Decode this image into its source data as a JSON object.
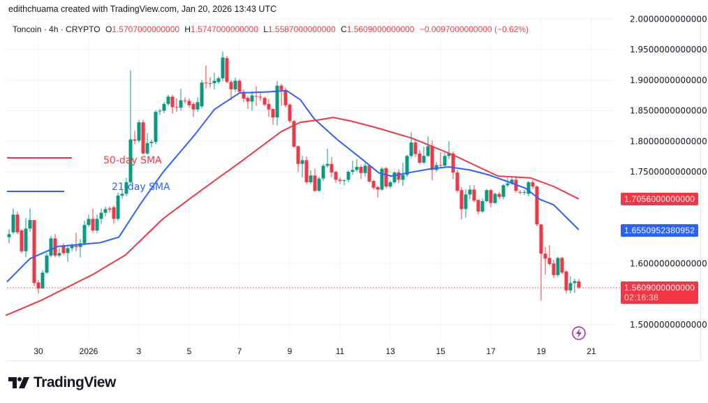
{
  "header": {
    "credit": "edithchuama created with TradingView.com, Jan 20, 2026 13:43 UTC"
  },
  "legend": {
    "symbol": "Toncoin · 4h · CRYPTO",
    "o_label": "O",
    "o": "1.5707000000000",
    "h_label": "H",
    "h": "1.5747000000000",
    "l_label": "L",
    "l": "1.5587000000000",
    "c_label": "C",
    "c": "1.5609000000000",
    "change": "−0.0097000000000 (−0.62%)"
  },
  "annotations": {
    "sma50_label": "50-day SMA",
    "sma21_label": "21-day SMA"
  },
  "price_tags": {
    "sma50": "1.7056000000000",
    "sma21": "1.6550952380952",
    "last": "1.5609000000000",
    "countdown": "02:16:38"
  },
  "colors": {
    "up": "#089981",
    "down": "#f23645",
    "sma21": "#2962ff",
    "sma50": "#f23645",
    "grid": "#f0f1f3",
    "event": "#9c27b0"
  },
  "icons": {
    "event": "lightning-icon",
    "logo": "tradingview-logo"
  },
  "brand": {
    "name": "TradingView"
  },
  "chart_data": {
    "type": "candlestick",
    "interval": "4h",
    "ylim": [
      1.49,
      2.0
    ],
    "grid": true,
    "y_ticks": [
      {
        "value": 2.0,
        "label": "2.0000000000000"
      },
      {
        "value": 1.95,
        "label": "1.9500000000000"
      },
      {
        "value": 1.9,
        "label": "1.9000000000000"
      },
      {
        "value": 1.85,
        "label": "1.8500000000000"
      },
      {
        "value": 1.8,
        "label": "1.8000000000000"
      },
      {
        "value": 1.75,
        "label": "1.7500000000000"
      },
      {
        "value": 1.6,
        "label": "1.6000000000000"
      },
      {
        "value": 1.5,
        "label": "1.5000000000000"
      }
    ],
    "x_ticks": [
      {
        "bar": 7,
        "label": "30"
      },
      {
        "bar": 19,
        "label": "2026"
      },
      {
        "bar": 31,
        "label": "3"
      },
      {
        "bar": 43,
        "label": "5"
      },
      {
        "bar": 55,
        "label": "7"
      },
      {
        "bar": 67,
        "label": "9"
      },
      {
        "bar": 79,
        "label": "11"
      },
      {
        "bar": 91,
        "label": "13"
      },
      {
        "bar": 103,
        "label": "15"
      },
      {
        "bar": 115,
        "label": "17"
      },
      {
        "bar": 127,
        "label": "19"
      },
      {
        "bar": 139,
        "label": "21"
      }
    ],
    "ohlc": [
      [
        1.643,
        1.656,
        1.633,
        1.648
      ],
      [
        1.651,
        1.69,
        1.648,
        1.68
      ],
      [
        1.68,
        1.685,
        1.648,
        1.651
      ],
      [
        1.654,
        1.656,
        1.617,
        1.62
      ],
      [
        1.62,
        1.674,
        1.61,
        1.657
      ],
      [
        1.657,
        1.69,
        1.652,
        1.671
      ],
      [
        1.671,
        1.671,
        1.563,
        1.568
      ],
      [
        1.569,
        1.573,
        1.551,
        1.559
      ],
      [
        1.559,
        1.589,
        1.559,
        1.585
      ],
      [
        1.585,
        1.617,
        1.583,
        1.613
      ],
      [
        1.613,
        1.645,
        1.61,
        1.641
      ],
      [
        1.641,
        1.648,
        1.61,
        1.613
      ],
      [
        1.613,
        1.625,
        1.61,
        1.617
      ],
      [
        1.629,
        1.633,
        1.614,
        1.617
      ],
      [
        1.617,
        1.629,
        1.603,
        1.625
      ],
      [
        1.625,
        1.633,
        1.62,
        1.629
      ],
      [
        1.629,
        1.65,
        1.62,
        1.627
      ],
      [
        1.627,
        1.64,
        1.61,
        1.633
      ],
      [
        1.633,
        1.67,
        1.63,
        1.663
      ],
      [
        1.663,
        1.68,
        1.66,
        1.673
      ],
      [
        1.673,
        1.69,
        1.65,
        1.654
      ],
      [
        1.654,
        1.68,
        1.65,
        1.673
      ],
      [
        1.673,
        1.69,
        1.665,
        1.683
      ],
      [
        1.683,
        1.693,
        1.677,
        1.689
      ],
      [
        1.69,
        1.693,
        1.683,
        1.688
      ],
      [
        1.692,
        1.695,
        1.665,
        1.673
      ],
      [
        1.673,
        1.716,
        1.67,
        1.711
      ],
      [
        1.711,
        1.72,
        1.706,
        1.714
      ],
      [
        1.714,
        1.74,
        1.71,
        1.733
      ],
      [
        1.733,
        1.916,
        1.73,
        1.803
      ],
      [
        1.803,
        1.817,
        1.795,
        1.801
      ],
      [
        1.801,
        1.835,
        1.798,
        1.831
      ],
      [
        1.831,
        1.835,
        1.778,
        1.78
      ],
      [
        1.78,
        1.813,
        1.778,
        1.797
      ],
      [
        1.797,
        1.803,
        1.79,
        1.799
      ],
      [
        1.799,
        1.851,
        1.795,
        1.848
      ],
      [
        1.849,
        1.853,
        1.843,
        1.85
      ],
      [
        1.85,
        1.864,
        1.846,
        1.861
      ],
      [
        1.861,
        1.876,
        1.858,
        1.873
      ],
      [
        1.873,
        1.876,
        1.845,
        1.856
      ],
      [
        1.856,
        1.87,
        1.848,
        1.855
      ],
      [
        1.855,
        1.886,
        1.85,
        1.867
      ],
      [
        1.867,
        1.872,
        1.862,
        1.866
      ],
      [
        1.866,
        1.87,
        1.855,
        1.859
      ],
      [
        1.861,
        1.864,
        1.84,
        1.852
      ],
      [
        1.852,
        1.872,
        1.848,
        1.864
      ],
      [
        1.857,
        1.9,
        1.854,
        1.896
      ],
      [
        1.896,
        1.924,
        1.886,
        1.895
      ],
      [
        1.895,
        1.905,
        1.888,
        1.894
      ],
      [
        1.895,
        1.912,
        1.885,
        1.899
      ],
      [
        1.897,
        1.906,
        1.894,
        1.903
      ],
      [
        1.903,
        1.947,
        1.898,
        1.937
      ],
      [
        1.936,
        1.94,
        1.895,
        1.897
      ],
      [
        1.897,
        1.9,
        1.867,
        1.885
      ],
      [
        1.885,
        1.904,
        1.881,
        1.899
      ],
      [
        1.899,
        1.901,
        1.878,
        1.881
      ],
      [
        1.881,
        1.885,
        1.864,
        1.87
      ],
      [
        1.871,
        1.874,
        1.853,
        1.865
      ],
      [
        1.865,
        1.882,
        1.85,
        1.875
      ],
      [
        1.874,
        1.89,
        1.858,
        1.873
      ],
      [
        1.873,
        1.88,
        1.866,
        1.872
      ],
      [
        1.871,
        1.873,
        1.858,
        1.86
      ],
      [
        1.861,
        1.869,
        1.84,
        1.852
      ],
      [
        1.853,
        1.853,
        1.827,
        1.839
      ],
      [
        1.839,
        1.899,
        1.826,
        1.891
      ],
      [
        1.891,
        1.894,
        1.858,
        1.884
      ],
      [
        1.884,
        1.888,
        1.855,
        1.859
      ],
      [
        1.86,
        1.862,
        1.83,
        1.833
      ],
      [
        1.833,
        1.835,
        1.79,
        1.791
      ],
      [
        1.792,
        1.793,
        1.75,
        1.763
      ],
      [
        1.763,
        1.776,
        1.741,
        1.769
      ],
      [
        1.769,
        1.775,
        1.73,
        1.733
      ],
      [
        1.733,
        1.752,
        1.73,
        1.744
      ],
      [
        1.744,
        1.755,
        1.717,
        1.719
      ],
      [
        1.719,
        1.742,
        1.717,
        1.739
      ],
      [
        1.739,
        1.763,
        1.735,
        1.76
      ],
      [
        1.76,
        1.788,
        1.757,
        1.763
      ],
      [
        1.763,
        1.774,
        1.741,
        1.749
      ],
      [
        1.75,
        1.751,
        1.732,
        1.737
      ],
      [
        1.737,
        1.741,
        1.73,
        1.735
      ],
      [
        1.735,
        1.738,
        1.728,
        1.736
      ],
      [
        1.737,
        1.753,
        1.733,
        1.75
      ],
      [
        1.75,
        1.768,
        1.745,
        1.753
      ],
      [
        1.753,
        1.771,
        1.75,
        1.758
      ],
      [
        1.758,
        1.761,
        1.738,
        1.748
      ],
      [
        1.748,
        1.764,
        1.742,
        1.76
      ],
      [
        1.76,
        1.762,
        1.733,
        1.734
      ],
      [
        1.735,
        1.737,
        1.721,
        1.724
      ],
      [
        1.725,
        1.727,
        1.708,
        1.721
      ],
      [
        1.721,
        1.758,
        1.719,
        1.755
      ],
      [
        1.756,
        1.758,
        1.723,
        1.726
      ],
      [
        1.726,
        1.735,
        1.723,
        1.733
      ],
      [
        1.733,
        1.751,
        1.73,
        1.749
      ],
      [
        1.749,
        1.754,
        1.731,
        1.737
      ],
      [
        1.737,
        1.765,
        1.727,
        1.745
      ],
      [
        1.745,
        1.778,
        1.742,
        1.776
      ],
      [
        1.776,
        1.815,
        1.772,
        1.798
      ],
      [
        1.798,
        1.803,
        1.774,
        1.779
      ],
      [
        1.78,
        1.786,
        1.763,
        1.765
      ],
      [
        1.765,
        1.791,
        1.763,
        1.776
      ],
      [
        1.776,
        1.808,
        1.774,
        1.792
      ],
      [
        1.792,
        1.801,
        1.736,
        1.753
      ],
      [
        1.753,
        1.766,
        1.75,
        1.761
      ],
      [
        1.761,
        1.782,
        1.756,
        1.76
      ],
      [
        1.76,
        1.781,
        1.757,
        1.776
      ],
      [
        1.776,
        1.8,
        1.771,
        1.78
      ],
      [
        1.78,
        1.783,
        1.738,
        1.749
      ],
      [
        1.749,
        1.753,
        1.716,
        1.719
      ],
      [
        1.72,
        1.725,
        1.672,
        1.689
      ],
      [
        1.689,
        1.722,
        1.675,
        1.713
      ],
      [
        1.713,
        1.728,
        1.705,
        1.721
      ],
      [
        1.721,
        1.728,
        1.7,
        1.703
      ],
      [
        1.704,
        1.705,
        1.68,
        1.685
      ],
      [
        1.685,
        1.706,
        1.683,
        1.702
      ],
      [
        1.702,
        1.722,
        1.7,
        1.72
      ],
      [
        1.72,
        1.722,
        1.692,
        1.699
      ],
      [
        1.699,
        1.716,
        1.698,
        1.714
      ],
      [
        1.714,
        1.717,
        1.705,
        1.709
      ],
      [
        1.709,
        1.73,
        1.705,
        1.728
      ],
      [
        1.728,
        1.74,
        1.725,
        1.731
      ],
      [
        1.731,
        1.743,
        1.729,
        1.737
      ],
      [
        1.737,
        1.743,
        1.716,
        1.719
      ],
      [
        1.717,
        1.72,
        1.713,
        1.716
      ],
      [
        1.716,
        1.721,
        1.712,
        1.717
      ],
      [
        1.714,
        1.735,
        1.71,
        1.733
      ],
      [
        1.733,
        1.737,
        1.722,
        1.726
      ],
      [
        1.726,
        1.728,
        1.661,
        1.664
      ],
      [
        1.664,
        1.664,
        1.54,
        1.616
      ],
      [
        1.616,
        1.627,
        1.582,
        1.608
      ],
      [
        1.609,
        1.63,
        1.597,
        1.599
      ],
      [
        1.6,
        1.606,
        1.576,
        1.581
      ],
      [
        1.581,
        1.611,
        1.578,
        1.609
      ],
      [
        1.609,
        1.611,
        1.583,
        1.585
      ],
      [
        1.587,
        1.589,
        1.551,
        1.556
      ],
      [
        1.556,
        1.579,
        1.551,
        1.568
      ],
      [
        1.568,
        1.575,
        1.552,
        1.571
      ],
      [
        1.5707,
        1.5747,
        1.5587,
        1.5609
      ]
    ],
    "series": [
      {
        "name": "21-day SMA",
        "points": [
          [
            -0.5,
            1.57
          ],
          [
            5,
            1.608
          ],
          [
            11.7,
            1.628
          ],
          [
            21.7,
            1.634
          ],
          [
            26.2,
            1.643
          ],
          [
            31.2,
            1.696
          ],
          [
            36.7,
            1.749
          ],
          [
            44.5,
            1.812
          ],
          [
            49,
            1.852
          ],
          [
            55,
            1.879
          ],
          [
            62.3,
            1.881
          ],
          [
            66.2,
            1.883
          ],
          [
            69.5,
            1.868
          ],
          [
            72.8,
            1.837
          ],
          [
            78.3,
            1.803
          ],
          [
            84,
            1.772
          ],
          [
            88.3,
            1.748
          ],
          [
            91.2,
            1.743
          ],
          [
            95,
            1.748
          ],
          [
            100.7,
            1.755
          ],
          [
            105,
            1.758
          ],
          [
            110,
            1.753
          ],
          [
            114.5,
            1.745
          ],
          [
            119,
            1.734
          ],
          [
            123.3,
            1.723
          ],
          [
            126.7,
            1.705
          ],
          [
            130,
            1.696
          ],
          [
            136,
            1.6551
          ]
        ]
      },
      {
        "name": "50-day SMA",
        "points": [
          [
            -0.8,
            1.515
          ],
          [
            7.8,
            1.54
          ],
          [
            20,
            1.582
          ],
          [
            27.8,
            1.614
          ],
          [
            36.7,
            1.673
          ],
          [
            44.5,
            1.713
          ],
          [
            55,
            1.765
          ],
          [
            65,
            1.816
          ],
          [
            69.5,
            1.831
          ],
          [
            74,
            1.835
          ],
          [
            77.3,
            1.839
          ],
          [
            81.7,
            1.833
          ],
          [
            87.8,
            1.822
          ],
          [
            96.2,
            1.805
          ],
          [
            106.2,
            1.777
          ],
          [
            116.7,
            1.743
          ],
          [
            124.5,
            1.74
          ],
          [
            130,
            1.726
          ],
          [
            136,
            1.7056
          ]
        ]
      }
    ]
  }
}
